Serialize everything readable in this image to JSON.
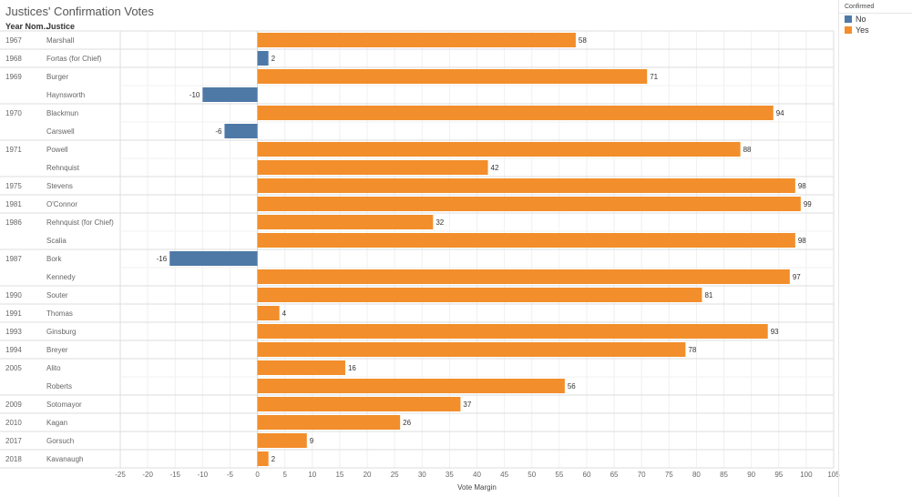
{
  "title": "Justices' Confirmation Votes",
  "headers": {
    "year": "Year Nom..",
    "justice": "Justice"
  },
  "legend": {
    "title": "Confirmed",
    "items": [
      {
        "label": "No",
        "color": "#4e79a7"
      },
      {
        "label": "Yes",
        "color": "#f28e2b"
      }
    ]
  },
  "chart_data": {
    "type": "bar",
    "orientation": "horizontal",
    "xlabel": "Vote Margin",
    "xlim": [
      -25,
      105
    ],
    "xticks": [
      -25,
      -20,
      -15,
      -10,
      -5,
      0,
      5,
      10,
      15,
      20,
      25,
      30,
      35,
      40,
      45,
      50,
      55,
      60,
      65,
      70,
      75,
      80,
      85,
      90,
      95,
      100,
      105
    ],
    "grid": true,
    "legend_position": "right",
    "rows": [
      {
        "year": "1967",
        "justice": "Marshall",
        "value": 58,
        "confirmed": "Yes"
      },
      {
        "year": "1968",
        "justice": "Fortas (for Chief)",
        "value": 2,
        "confirmed": "No"
      },
      {
        "year": "1969",
        "justice": "Burger",
        "value": 71,
        "confirmed": "Yes"
      },
      {
        "year": "1969",
        "justice": "Haynsworth",
        "value": -10,
        "confirmed": "No"
      },
      {
        "year": "1970",
        "justice": "Blackmun",
        "value": 94,
        "confirmed": "Yes"
      },
      {
        "year": "1970",
        "justice": "Carswell",
        "value": -6,
        "confirmed": "No"
      },
      {
        "year": "1971",
        "justice": "Powell",
        "value": 88,
        "confirmed": "Yes"
      },
      {
        "year": "1971",
        "justice": "Rehnquist",
        "value": 42,
        "confirmed": "Yes"
      },
      {
        "year": "1975",
        "justice": "Stevens",
        "value": 98,
        "confirmed": "Yes"
      },
      {
        "year": "1981",
        "justice": "O'Connor",
        "value": 99,
        "confirmed": "Yes"
      },
      {
        "year": "1986",
        "justice": "Rehnquist (for Chief)",
        "value": 32,
        "confirmed": "Yes"
      },
      {
        "year": "1986",
        "justice": "Scalia",
        "value": 98,
        "confirmed": "Yes"
      },
      {
        "year": "1987",
        "justice": "Bork",
        "value": -16,
        "confirmed": "No"
      },
      {
        "year": "1987",
        "justice": "Kennedy",
        "value": 97,
        "confirmed": "Yes"
      },
      {
        "year": "1990",
        "justice": "Souter",
        "value": 81,
        "confirmed": "Yes"
      },
      {
        "year": "1991",
        "justice": "Thomas",
        "value": 4,
        "confirmed": "Yes"
      },
      {
        "year": "1993",
        "justice": "Ginsburg",
        "value": 93,
        "confirmed": "Yes"
      },
      {
        "year": "1994",
        "justice": "Breyer",
        "value": 78,
        "confirmed": "Yes"
      },
      {
        "year": "2005",
        "justice": "Alito",
        "value": 16,
        "confirmed": "Yes"
      },
      {
        "year": "2005",
        "justice": "Roberts",
        "value": 56,
        "confirmed": "Yes"
      },
      {
        "year": "2009",
        "justice": "Sotomayor",
        "value": 37,
        "confirmed": "Yes"
      },
      {
        "year": "2010",
        "justice": "Kagan",
        "value": 26,
        "confirmed": "Yes"
      },
      {
        "year": "2017",
        "justice": "Gorsuch",
        "value": 9,
        "confirmed": "Yes"
      },
      {
        "year": "2018",
        "justice": "Kavanaugh",
        "value": 2,
        "confirmed": "Yes"
      }
    ]
  }
}
